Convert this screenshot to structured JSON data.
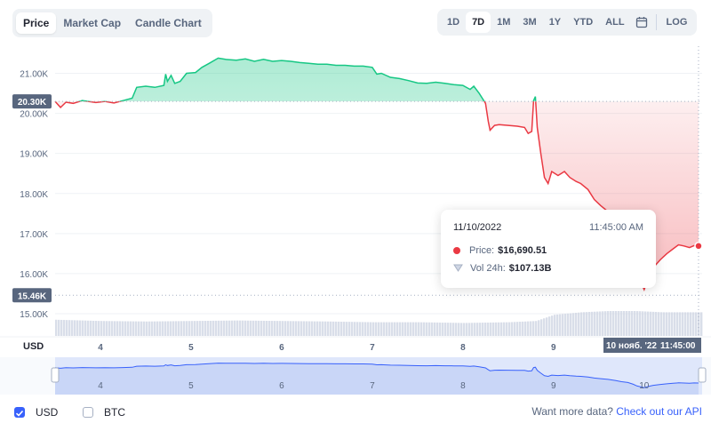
{
  "tabs": [
    {
      "label": "Price",
      "active": true
    },
    {
      "label": "Market Cap",
      "active": false
    },
    {
      "label": "Candle Chart",
      "active": false
    }
  ],
  "ranges": [
    {
      "label": "1D",
      "active": false
    },
    {
      "label": "7D",
      "active": true
    },
    {
      "label": "1M",
      "active": false
    },
    {
      "label": "3M",
      "active": false
    },
    {
      "label": "1Y",
      "active": false
    },
    {
      "label": "YTD",
      "active": false
    },
    {
      "label": "ALL",
      "active": false
    }
  ],
  "calendar_icon": "calendar-icon",
  "log_label": "LOG",
  "tooltip": {
    "date": "11/10/2022",
    "time": "11:45:00 AM",
    "price_label": "Price:",
    "price_value": "$16,690.51",
    "vol_label": "Vol 24h:",
    "vol_value": "$107.13B"
  },
  "axis_currency_label": "USD",
  "crosshair_date_label": "10 нояб. '22",
  "crosshair_time_label": "11:45:00",
  "footer": {
    "usd_label": "USD",
    "btc_label": "BTC",
    "more_text": "Want more data?",
    "more_link": "Check out our API"
  },
  "colors": {
    "up": "#16c784",
    "down": "#ea3943",
    "accent": "#3861fb"
  },
  "chart_data": {
    "type": "area",
    "title": "",
    "xlabel": "",
    "ylabel": "",
    "ylim": [
      14800,
      21500
    ],
    "reference_price": 20300,
    "reference_label": "20.30K",
    "low_label": "15.46K",
    "low_value": 15460,
    "y_ticks": [
      {
        "label": "21.00K",
        "value": 21000
      },
      {
        "label": "20.00K",
        "value": 20000
      },
      {
        "label": "19.00K",
        "value": 19000
      },
      {
        "label": "18.00K",
        "value": 18000
      },
      {
        "label": "17.00K",
        "value": 17000
      },
      {
        "label": "16.00K",
        "value": 16000
      },
      {
        "label": "15.00K",
        "value": 15000
      }
    ],
    "x_ticks": [
      {
        "label": "4",
        "day": 4
      },
      {
        "label": "5",
        "day": 5
      },
      {
        "label": "6",
        "day": 6
      },
      {
        "label": "7",
        "day": 7
      },
      {
        "label": "8",
        "day": 8
      },
      {
        "label": "9",
        "day": 9
      }
    ],
    "navigator_ticks": [
      {
        "label": "4",
        "day": 4
      },
      {
        "label": "5",
        "day": 5
      },
      {
        "label": "6",
        "day": 6
      },
      {
        "label": "7",
        "day": 7
      },
      {
        "label": "8",
        "day": 8
      },
      {
        "label": "9",
        "day": 9
      },
      {
        "label": "10",
        "day": 10
      }
    ],
    "x_range": [
      3.5,
      10.62
    ],
    "series": [
      {
        "name": "Price",
        "points": [
          [
            3.5,
            20300
          ],
          [
            3.56,
            20150
          ],
          [
            3.62,
            20280
          ],
          [
            3.7,
            20250
          ],
          [
            3.8,
            20320
          ],
          [
            3.95,
            20270
          ],
          [
            4.05,
            20300
          ],
          [
            4.15,
            20260
          ],
          [
            4.25,
            20320
          ],
          [
            4.35,
            20380
          ],
          [
            4.4,
            20650
          ],
          [
            4.5,
            20680
          ],
          [
            4.6,
            20650
          ],
          [
            4.7,
            20700
          ],
          [
            4.72,
            20980
          ],
          [
            4.74,
            20800
          ],
          [
            4.78,
            20950
          ],
          [
            4.82,
            20750
          ],
          [
            4.88,
            20800
          ],
          [
            4.95,
            21000
          ],
          [
            5.05,
            21020
          ],
          [
            5.12,
            21150
          ],
          [
            5.2,
            21250
          ],
          [
            5.3,
            21380
          ],
          [
            5.38,
            21350
          ],
          [
            5.5,
            21330
          ],
          [
            5.6,
            21360
          ],
          [
            5.7,
            21300
          ],
          [
            5.8,
            21350
          ],
          [
            5.9,
            21300
          ],
          [
            6.0,
            21320
          ],
          [
            6.1,
            21300
          ],
          [
            6.2,
            21270
          ],
          [
            6.3,
            21250
          ],
          [
            6.4,
            21230
          ],
          [
            6.5,
            21230
          ],
          [
            6.6,
            21200
          ],
          [
            6.7,
            21200
          ],
          [
            6.8,
            21180
          ],
          [
            6.9,
            21180
          ],
          [
            7.0,
            21150
          ],
          [
            7.05,
            20980
          ],
          [
            7.1,
            21000
          ],
          [
            7.2,
            20900
          ],
          [
            7.3,
            20870
          ],
          [
            7.4,
            20820
          ],
          [
            7.5,
            20760
          ],
          [
            7.6,
            20750
          ],
          [
            7.7,
            20780
          ],
          [
            7.8,
            20750
          ],
          [
            7.9,
            20720
          ],
          [
            8.0,
            20700
          ],
          [
            8.08,
            20600
          ],
          [
            8.12,
            20680
          ],
          [
            8.18,
            20500
          ],
          [
            8.25,
            20250
          ],
          [
            8.28,
            19800
          ],
          [
            8.3,
            19580
          ],
          [
            8.35,
            19700
          ],
          [
            8.4,
            19720
          ],
          [
            8.5,
            19700
          ],
          [
            8.6,
            19680
          ],
          [
            8.68,
            19650
          ],
          [
            8.72,
            19500
          ],
          [
            8.76,
            19550
          ],
          [
            8.78,
            20320
          ],
          [
            8.8,
            20420
          ],
          [
            8.82,
            19650
          ],
          [
            8.86,
            19000
          ],
          [
            8.9,
            18400
          ],
          [
            8.94,
            18250
          ],
          [
            8.98,
            18550
          ],
          [
            9.05,
            18450
          ],
          [
            9.12,
            18550
          ],
          [
            9.18,
            18400
          ],
          [
            9.25,
            18300
          ],
          [
            9.3,
            18250
          ],
          [
            9.38,
            18100
          ],
          [
            9.45,
            17850
          ],
          [
            9.52,
            17700
          ],
          [
            9.6,
            17550
          ],
          [
            9.68,
            17300
          ],
          [
            9.75,
            17000
          ],
          [
            9.82,
            16800
          ],
          [
            9.88,
            16400
          ],
          [
            9.92,
            16000
          ],
          [
            9.96,
            15800
          ],
          [
            10.0,
            15600
          ],
          [
            10.05,
            15900
          ],
          [
            10.1,
            16150
          ],
          [
            10.18,
            16350
          ],
          [
            10.25,
            16500
          ],
          [
            10.32,
            16620
          ],
          [
            10.38,
            16720
          ],
          [
            10.44,
            16690
          ],
          [
            10.5,
            16650
          ],
          [
            10.55,
            16700
          ],
          [
            10.6,
            16690
          ]
        ]
      },
      {
        "name": "Vol 24h",
        "points": [
          [
            3.5,
            0.65
          ],
          [
            4.0,
            0.6
          ],
          [
            4.5,
            0.58
          ],
          [
            5.0,
            0.6
          ],
          [
            5.5,
            0.62
          ],
          [
            6.0,
            0.6
          ],
          [
            6.5,
            0.58
          ],
          [
            7.0,
            0.55
          ],
          [
            7.5,
            0.55
          ],
          [
            8.0,
            0.52
          ],
          [
            8.5,
            0.55
          ],
          [
            8.8,
            0.6
          ],
          [
            9.0,
            0.85
          ],
          [
            9.3,
            0.95
          ],
          [
            9.6,
            1.0
          ],
          [
            9.9,
            1.0
          ],
          [
            10.2,
            0.95
          ],
          [
            10.6,
            0.95
          ]
        ]
      }
    ],
    "highlight": {
      "x": 10.6,
      "price": 16690.51
    }
  }
}
